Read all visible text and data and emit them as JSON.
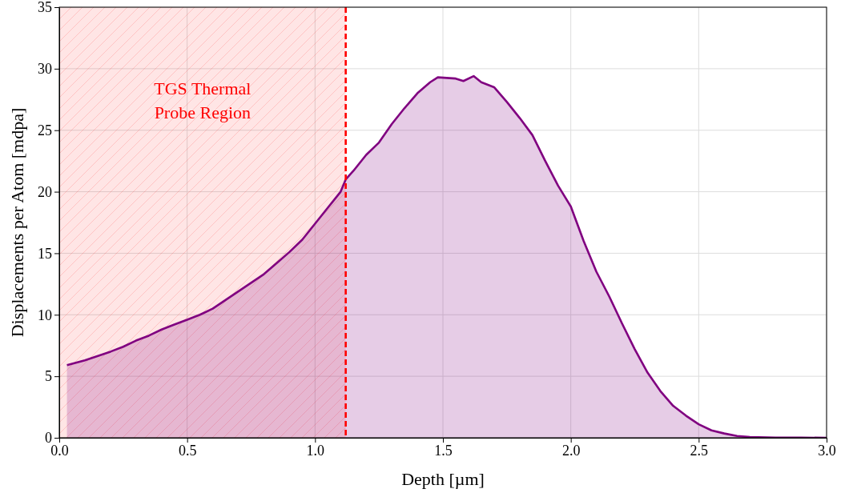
{
  "chart_data": {
    "type": "area",
    "xlabel": "Depth [µm]",
    "ylabel": "Displacements per Atom [mdpa]",
    "xlim": [
      0,
      3.0
    ],
    "xticks": [
      {
        "value": 0,
        "label": "0.0"
      },
      0.5,
      {
        "value": 1,
        "label": "1.0"
      },
      1.5,
      {
        "value": 2,
        "label": "2.0"
      },
      2.5,
      {
        "value": 3,
        "label": "3.0"
      }
    ],
    "ylim": [
      0,
      35
    ],
    "yticks": [
      0,
      5,
      10,
      15,
      20,
      25,
      30,
      35
    ],
    "grid": true,
    "line_style": "solid",
    "x": [
      0.03,
      0.1,
      0.2,
      0.25,
      0.3,
      0.35,
      0.4,
      0.45,
      0.5,
      0.55,
      0.6,
      0.65,
      0.7,
      0.75,
      0.8,
      0.85,
      0.9,
      0.95,
      1.0,
      1.05,
      1.1,
      1.12,
      1.15,
      1.2,
      1.25,
      1.3,
      1.35,
      1.4,
      1.45,
      1.48,
      1.55,
      1.58,
      1.62,
      1.65,
      1.7,
      1.75,
      1.8,
      1.85,
      1.9,
      1.95,
      2.0,
      2.05,
      2.1,
      2.15,
      2.2,
      2.25,
      2.3,
      2.35,
      2.4,
      2.45,
      2.5,
      2.55,
      2.6,
      2.65,
      2.7,
      2.8,
      2.9,
      3.0
    ],
    "series": [
      {
        "color": "#800080",
        "values": [
          5.9,
          6.3,
          7.0,
          7.4,
          7.9,
          8.3,
          8.8,
          9.2,
          9.6,
          10.0,
          10.5,
          11.2,
          11.9,
          12.6,
          13.3,
          14.2,
          15.1,
          16.1,
          17.4,
          18.7,
          20.0,
          21.0,
          21.7,
          23.0,
          24.0,
          25.5,
          26.8,
          28.0,
          28.9,
          29.3,
          29.2,
          29.0,
          29.4,
          28.9,
          28.5,
          27.3,
          26.0,
          24.6,
          22.5,
          20.5,
          18.8,
          16.0,
          13.5,
          11.5,
          9.3,
          7.2,
          5.3,
          3.8,
          2.6,
          1.8,
          1.1,
          0.6,
          0.35,
          0.15,
          0.06,
          0.02,
          0.01,
          0
        ]
      }
    ],
    "bands": [
      {
        "axis": "x",
        "from": 0,
        "to": 1.12,
        "label": "TGS Thermal Probe Region",
        "color": "#ff0000"
      }
    ],
    "ref_lines": [
      {
        "axis": "x",
        "value": 1.12,
        "color": "#ff0000",
        "line_style": "dashed"
      }
    ]
  }
}
